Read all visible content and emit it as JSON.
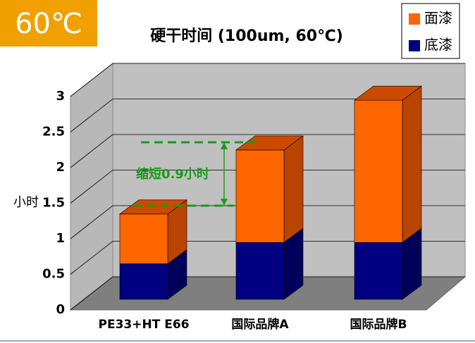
{
  "badge": "60℃",
  "chart_data": {
    "type": "bar3d-stacked",
    "title": "硬干时间 (100um, 60℃)",
    "y_label": "小时",
    "categories": [
      "PE33+HT E66",
      "国际品牌A",
      "国际品牌B"
    ],
    "series": [
      {
        "name": "面漆",
        "color": "#ff6600",
        "values": [
          0.7,
          1.3,
          2.0
        ]
      },
      {
        "name": "底漆",
        "color": "#000080",
        "values": [
          0.5,
          0.8,
          0.8
        ]
      }
    ],
    "ylim": [
      0,
      3
    ],
    "yticks": [
      0,
      0.5,
      1,
      1.5,
      2,
      2.5,
      3
    ],
    "annotation": "缩短0.9小时"
  }
}
